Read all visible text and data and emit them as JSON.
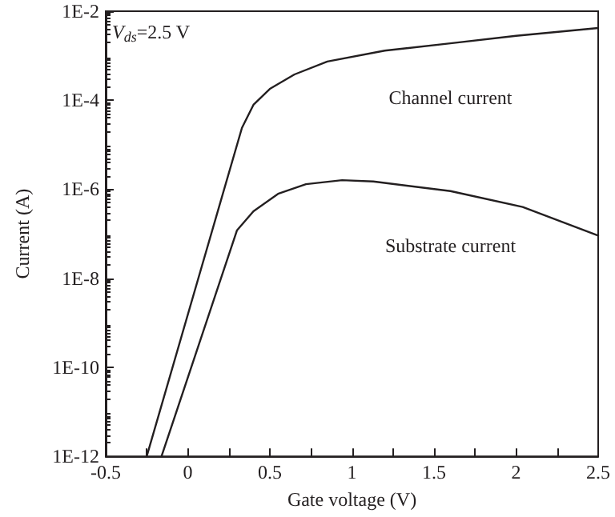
{
  "chart_data": {
    "type": "line",
    "xlabel": "Gate voltage (V)",
    "ylabel": "Current (A)",
    "annotations": [
      "V$_{ds}$=2.5 V"
    ],
    "log": "y",
    "grid": false,
    "legend": false,
    "marker": "none",
    "line_style": "solid",
    "xlim": [
      -0.5,
      2.5
    ],
    "xticks": [
      -0.5,
      {
        "value": -0.25,
        "label": null
      },
      0,
      {
        "value": 0.25,
        "label": null
      },
      0.5,
      {
        "value": 0.75,
        "label": null
      },
      1,
      {
        "value": 1.25,
        "label": null
      },
      1.5,
      {
        "value": 1.75,
        "label": null
      },
      2,
      {
        "value": 2.25,
        "label": null
      },
      2.5
    ],
    "ylim": [
      1e-12,
      0.01
    ],
    "yticks": [
      {
        "value": 1e-12,
        "label": "1E-12"
      },
      {
        "value": 1e-10,
        "label": "1E-10"
      },
      {
        "value": 1e-08,
        "label": "1E-8"
      },
      {
        "value": 1e-06,
        "label": "1E-6"
      },
      {
        "value": 0.0001,
        "label": "1E-4"
      },
      {
        "value": 0.01,
        "label": "1E-2"
      }
    ],
    "series": [
      {
        "name": "Channel current",
        "color": "#231f20",
        "x": [
          -0.25,
          0.33,
          0.4,
          0.5,
          0.65,
          0.85,
          1.2,
          1.6,
          2.0,
          2.5
        ],
        "values": [
          1e-12,
          2.4e-05,
          7.9e-05,
          0.00018,
          0.00038,
          0.00074,
          0.0013,
          0.0019,
          0.0028,
          0.0042
        ]
      },
      {
        "name": "Substrate current",
        "color": "#231f20",
        "x": [
          -0.16,
          0.3,
          0.4,
          0.55,
          0.72,
          0.94,
          1.13,
          1.6,
          2.04,
          2.5
        ],
        "values": [
          1e-12,
          1.2e-07,
          3.2e-07,
          7.9e-07,
          1.3e-06,
          1.6e-06,
          1.5e-06,
          9.1e-07,
          4e-07,
          9.1e-08
        ]
      }
    ]
  }
}
